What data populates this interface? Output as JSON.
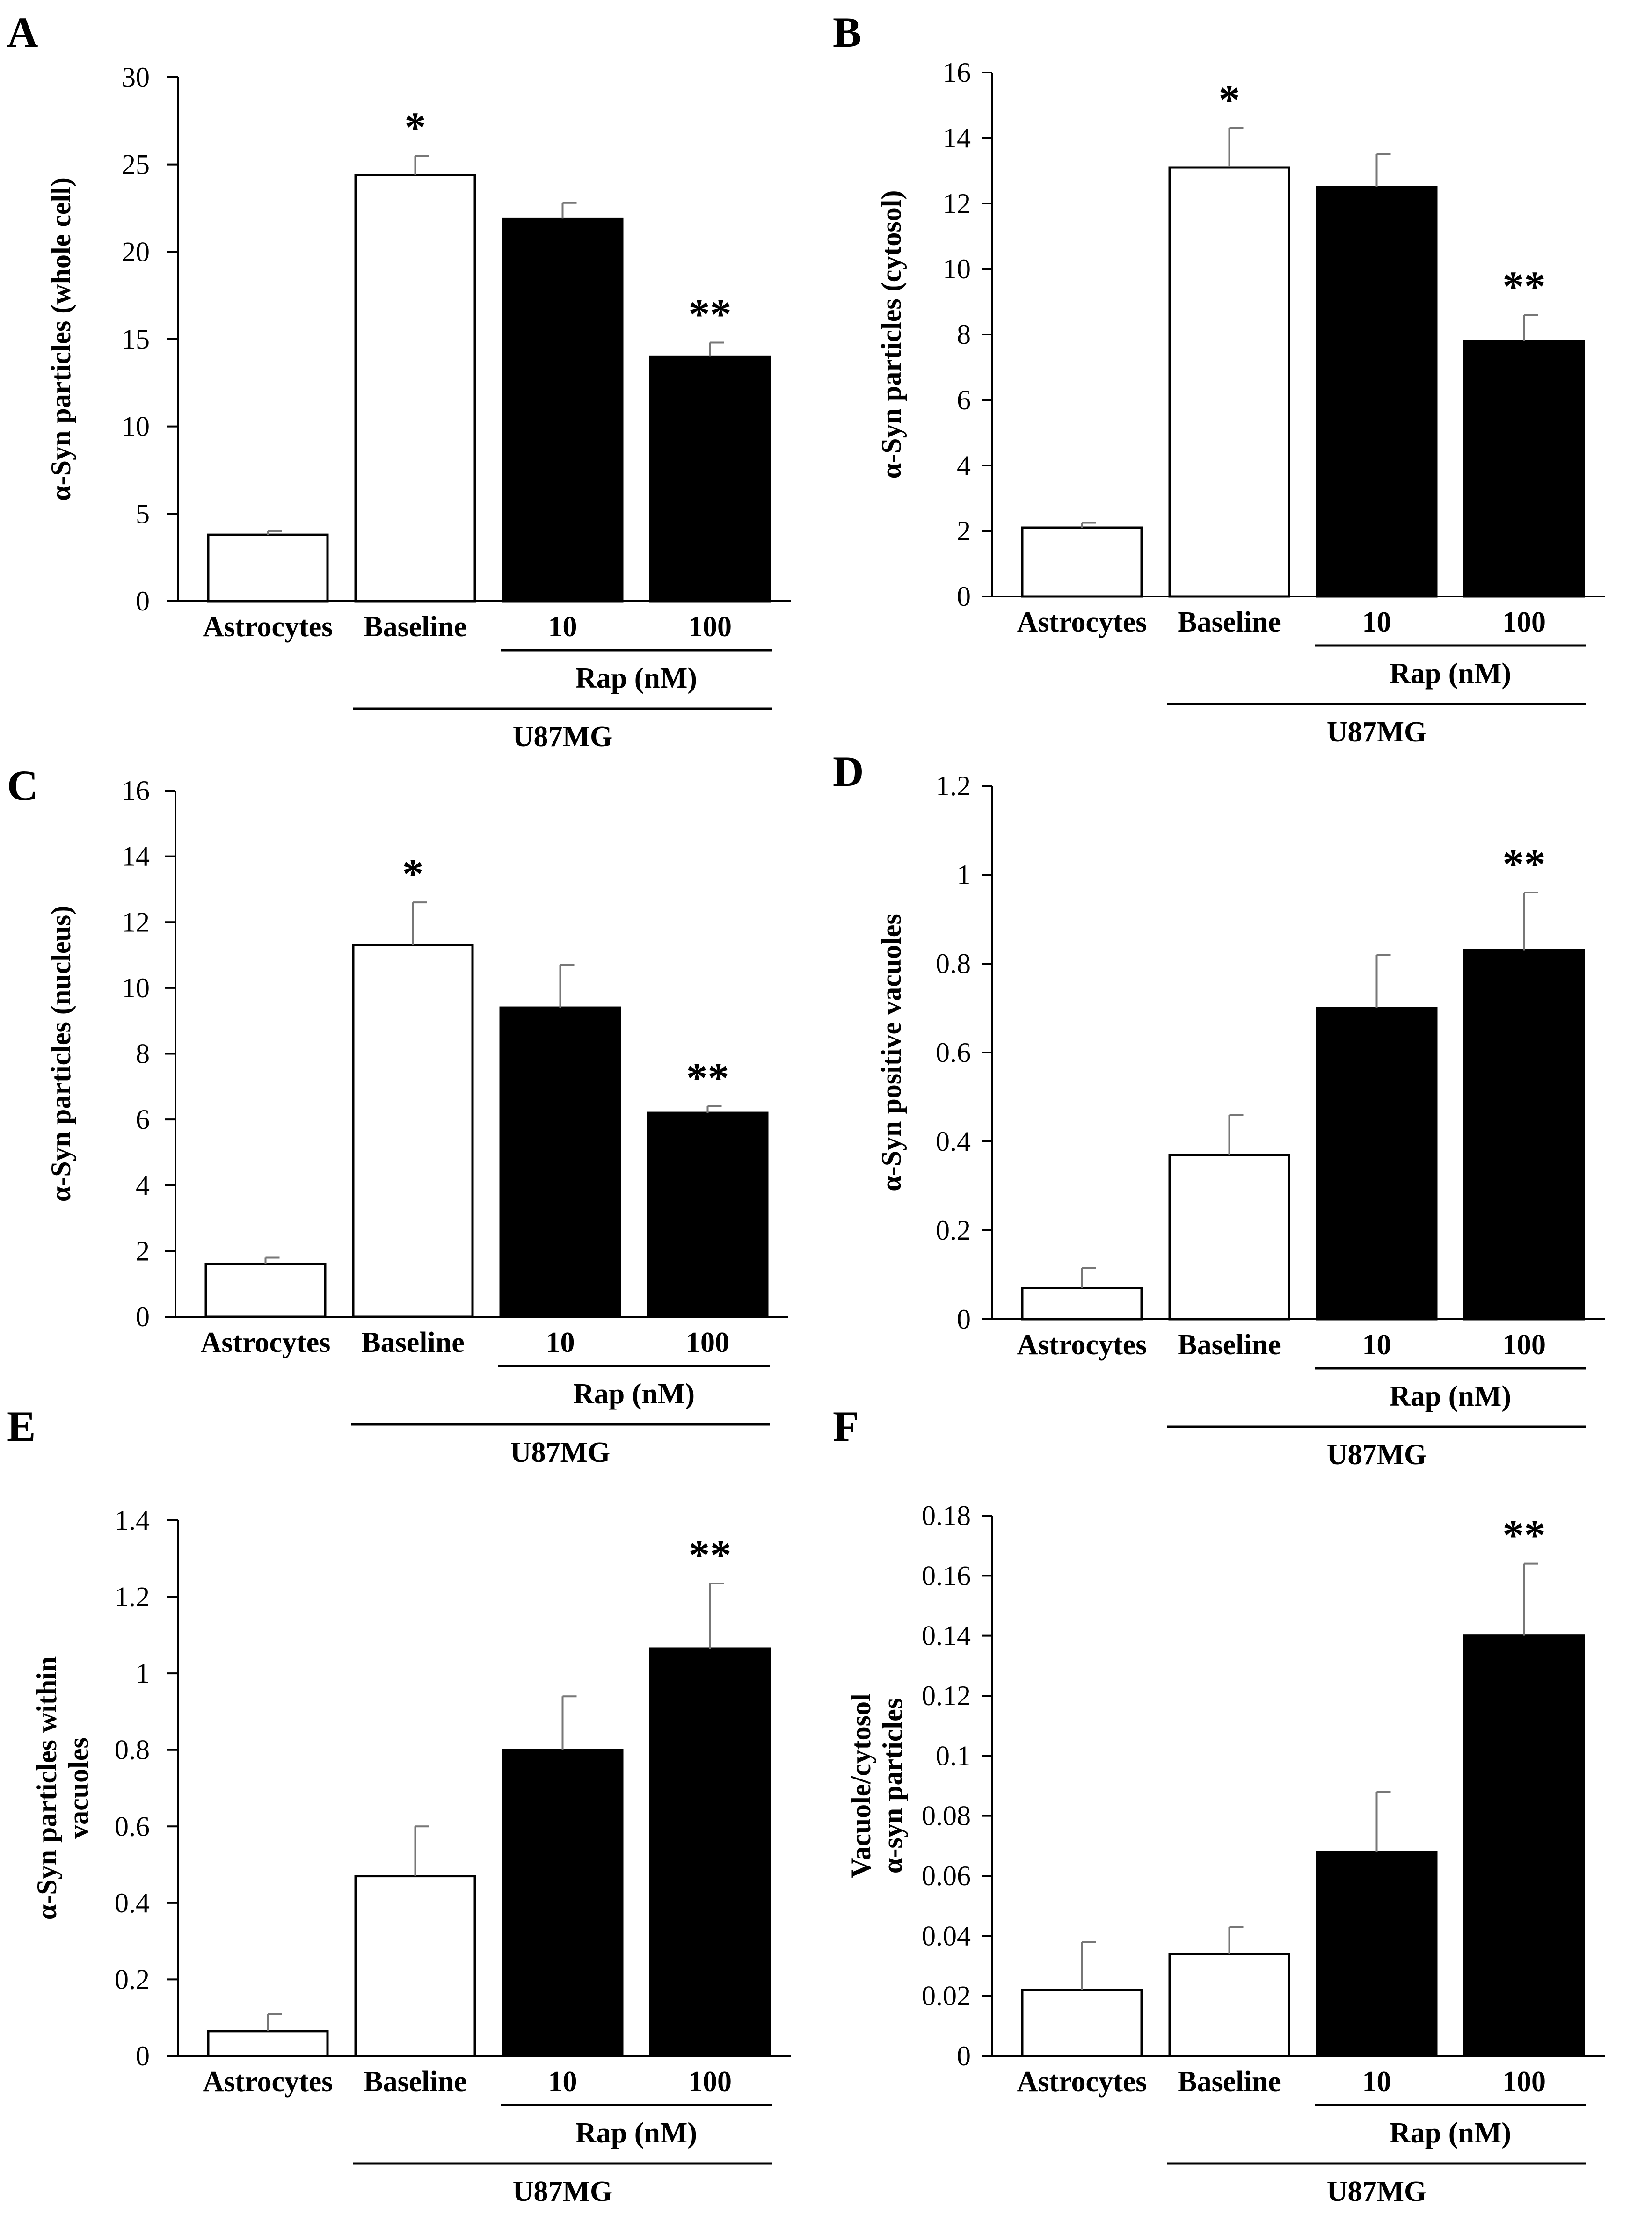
{
  "chart_data": [
    {
      "type": "bar",
      "panel": "A",
      "ylabel_lines": [
        "α-Syn particles (whole cell)"
      ],
      "ylim": [
        0,
        30
      ],
      "yticks": [
        0,
        5,
        10,
        15,
        20,
        25,
        30
      ],
      "ytick_labels": [
        "0",
        "5",
        "10",
        "15",
        "20",
        "25",
        "30"
      ],
      "categories": [
        "Astrocytes",
        "Baseline",
        "10",
        "100"
      ],
      "values": [
        3.8,
        24.4,
        21.9,
        14.0
      ],
      "errors": [
        0.2,
        1.1,
        0.9,
        0.8
      ],
      "fills": [
        "#ffffff",
        "#ffffff",
        "#000000",
        "#000000"
      ],
      "annotations": [
        "",
        "*",
        "",
        "**"
      ],
      "group_label": "Rap (nM)",
      "cell_label": "U87MG"
    },
    {
      "type": "bar",
      "panel": "B",
      "ylabel_lines": [
        "α-Syn particles (cytosol)"
      ],
      "ylim": [
        0,
        16
      ],
      "yticks": [
        0,
        2,
        4,
        6,
        8,
        10,
        12,
        14,
        16
      ],
      "ytick_labels": [
        "0",
        "2",
        "4",
        "6",
        "8",
        "10",
        "12",
        "14",
        "16"
      ],
      "categories": [
        "Astrocytes",
        "Baseline",
        "10",
        "100"
      ],
      "values": [
        2.1,
        13.1,
        12.5,
        7.8
      ],
      "errors": [
        0.15,
        1.2,
        1.0,
        0.8
      ],
      "fills": [
        "#ffffff",
        "#ffffff",
        "#000000",
        "#000000"
      ],
      "annotations": [
        "",
        "*",
        "",
        "**"
      ],
      "group_label": "Rap (nM)",
      "cell_label": "U87MG"
    },
    {
      "type": "bar",
      "panel": "C",
      "ylabel_lines": [
        "α-Syn particles (nucleus)"
      ],
      "ylim": [
        0,
        16
      ],
      "yticks": [
        0,
        2,
        4,
        6,
        8,
        10,
        12,
        14,
        16
      ],
      "ytick_labels": [
        "0",
        "2",
        "4",
        "6",
        "8",
        "10",
        "12",
        "14",
        "16"
      ],
      "categories": [
        "Astrocytes",
        "Baseline",
        "10",
        "100"
      ],
      "values": [
        1.6,
        11.3,
        9.4,
        6.2
      ],
      "errors": [
        0.2,
        1.3,
        1.3,
        0.2
      ],
      "fills": [
        "#ffffff",
        "#ffffff",
        "#000000",
        "#000000"
      ],
      "annotations": [
        "",
        "*",
        "",
        "**"
      ],
      "group_label": "Rap (nM)",
      "cell_label": "U87MG"
    },
    {
      "type": "bar",
      "panel": "D",
      "ylabel_lines": [
        "α-Syn positive vacuoles"
      ],
      "ylim": [
        0,
        1.2
      ],
      "yticks": [
        0,
        0.2,
        0.4,
        0.6,
        0.8,
        1.0,
        1.2
      ],
      "ytick_labels": [
        "0",
        "0.2",
        "0.4",
        "0.6",
        "0.8",
        "1",
        "1.2"
      ],
      "categories": [
        "Astrocytes",
        "Baseline",
        "10",
        "100"
      ],
      "values": [
        0.07,
        0.37,
        0.7,
        0.83
      ],
      "errors": [
        0.045,
        0.09,
        0.12,
        0.13
      ],
      "fills": [
        "#ffffff",
        "#ffffff",
        "#000000",
        "#000000"
      ],
      "annotations": [
        "",
        "",
        "",
        "**"
      ],
      "group_label": "Rap (nM)",
      "cell_label": "U87MG"
    },
    {
      "type": "bar",
      "panel": "E",
      "ylabel_lines": [
        "α-Syn particles within",
        "vacuoles"
      ],
      "ylim": [
        0,
        1.4
      ],
      "yticks": [
        0,
        0.2,
        0.4,
        0.6,
        0.8,
        1.0,
        1.2,
        1.4
      ],
      "ytick_labels": [
        "0",
        "0.2",
        "0.4",
        "0.6",
        "0.8",
        "1",
        "1.2",
        "1.4"
      ],
      "categories": [
        "Astrocytes",
        "Baseline",
        "10",
        "100"
      ],
      "values": [
        0.065,
        0.47,
        0.8,
        1.065
      ],
      "errors": [
        0.045,
        0.13,
        0.14,
        0.17
      ],
      "fills": [
        "#ffffff",
        "#ffffff",
        "#000000",
        "#000000"
      ],
      "annotations": [
        "",
        "",
        "",
        "**"
      ],
      "group_label": "Rap (nM)",
      "cell_label": "U87MG"
    },
    {
      "type": "bar",
      "panel": "F",
      "ylabel_lines": [
        "Vacuole/cytosol",
        "α-syn particles"
      ],
      "ylim": [
        0,
        0.18
      ],
      "yticks": [
        0,
        0.02,
        0.04,
        0.06,
        0.08,
        0.1,
        0.12,
        0.14,
        0.16,
        0.18
      ],
      "ytick_labels": [
        "0",
        "0.02",
        "0.04",
        "0.06",
        "0.08",
        "0.1",
        "0.12",
        "0.14",
        "0.16",
        "0.18"
      ],
      "categories": [
        "Astrocytes",
        "Baseline",
        "10",
        "100"
      ],
      "values": [
        0.022,
        0.034,
        0.068,
        0.14
      ],
      "errors": [
        0.016,
        0.009,
        0.02,
        0.024
      ],
      "fills": [
        "#ffffff",
        "#ffffff",
        "#000000",
        "#000000"
      ],
      "annotations": [
        "",
        "",
        "",
        "**"
      ],
      "group_label": "Rap (nM)",
      "cell_label": "U87MG"
    }
  ]
}
